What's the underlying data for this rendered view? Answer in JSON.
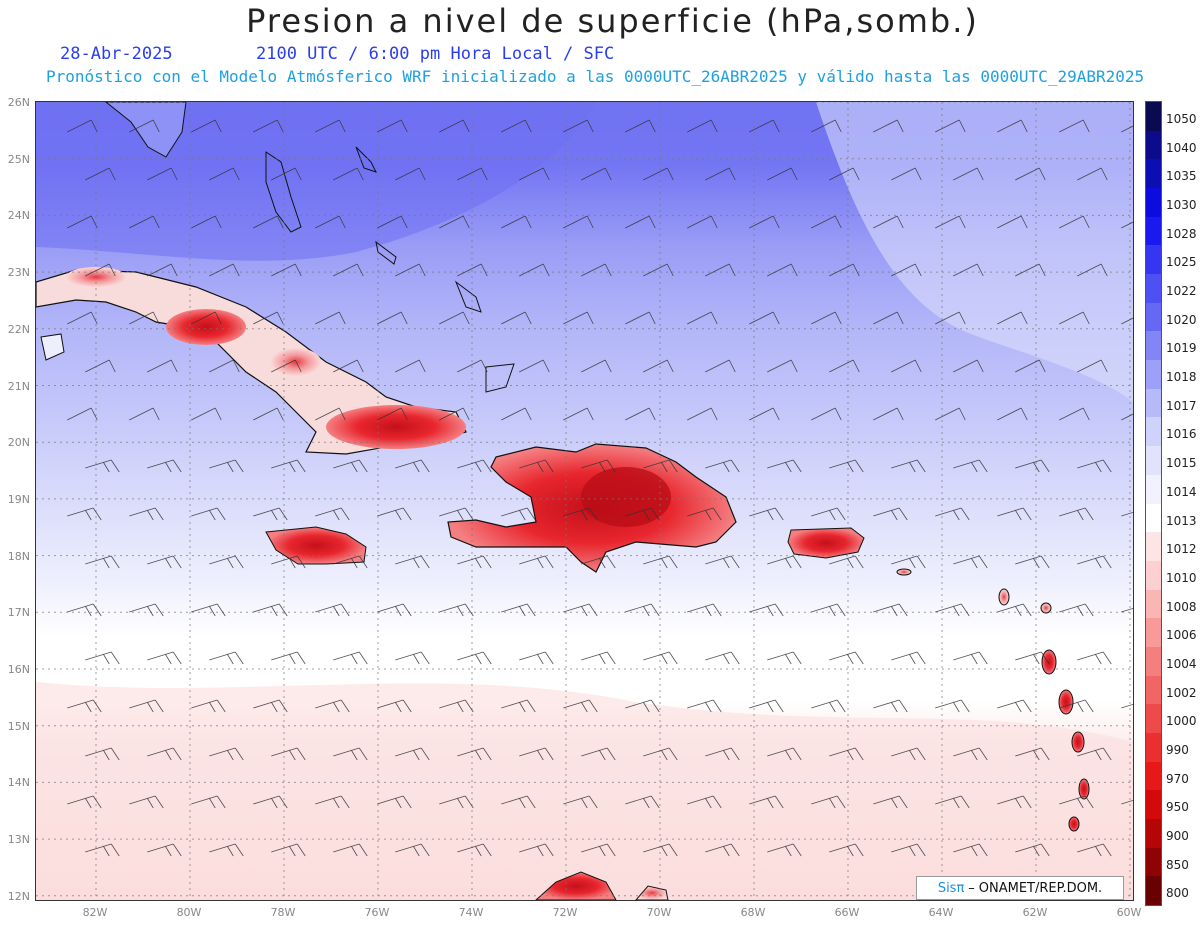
{
  "title": "Presion a nivel de superficie (hPa,somb.)",
  "date": "28-Abr-2025",
  "time_info": "2100 UTC / 6:00 pm Hora Local / SFC",
  "forecast_info": "Pronóstico con el Modelo Atmósferico WRF inicializado a las 0000UTC_26ABR2025 y válido hasta las  0000UTC_29ABR2025",
  "lat_labels": [
    "26N",
    "25N",
    "24N",
    "23N",
    "22N",
    "21N",
    "20N",
    "19N",
    "18N",
    "17N",
    "16N",
    "15N",
    "14N",
    "13N",
    "12N"
  ],
  "lon_labels": [
    "82W",
    "80W",
    "78W",
    "76W",
    "74W",
    "72W",
    "70W",
    "68W",
    "66W",
    "64W",
    "62W",
    "60W"
  ],
  "colorbar": {
    "levels": [
      "1050",
      "1040",
      "1035",
      "1030",
      "1028",
      "1025",
      "1022",
      "1020",
      "1019",
      "1018",
      "1017",
      "1016",
      "1015",
      "1014",
      "1013",
      "1012",
      "1010",
      "1008",
      "1006",
      "1004",
      "1002",
      "1000",
      "990",
      "970",
      "950",
      "900",
      "850",
      "800"
    ],
    "colors": [
      "#0a0a50",
      "#0b0b8c",
      "#0d0db4",
      "#0c0cde",
      "#1a1af0",
      "#3636f2",
      "#4f50f3",
      "#6667f4",
      "#8285f6",
      "#9da0f8",
      "#b7baf9",
      "#cfd2fb",
      "#e1e3fc",
      "#f2f2fe",
      "#ffffff",
      "#fde5e5",
      "#fcd0d0",
      "#fab5b5",
      "#f89a9a",
      "#f57f7f",
      "#f26565",
      "#ef4a4a",
      "#eb2f2f",
      "#e61818",
      "#d40a0a",
      "#b50505",
      "#8f0303",
      "#6a0101"
    ]
  },
  "credit": {
    "brand": "Sisπ",
    "text": "ONAMET/REP.DOM."
  },
  "colors": {
    "high": "#6a6cf2",
    "mid": "#b9bbf8",
    "low": "#ffffff",
    "warm": "#fde6e6",
    "land": "#e8222a"
  }
}
